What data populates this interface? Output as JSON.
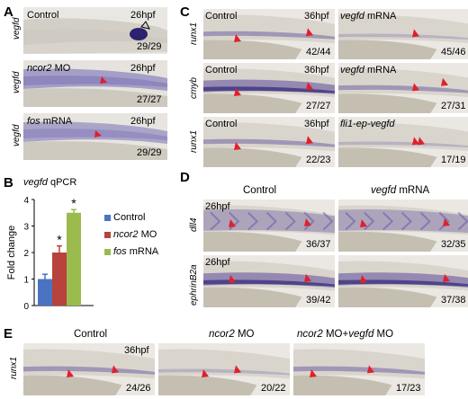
{
  "panel_labels": {
    "A": "A",
    "B": "B",
    "C": "C",
    "D": "D",
    "E": "E"
  },
  "panel_A": [
    {
      "gene": "vegfd",
      "condition": "Control",
      "condition_italic": "",
      "condition_suffix": "",
      "stage": "26hpf",
      "count": "29/29"
    },
    {
      "gene": "vegfd",
      "condition": "",
      "condition_italic": "ncor2",
      "condition_suffix": " MO",
      "stage": "26hpf",
      "count": "27/27"
    },
    {
      "gene": "vegfd",
      "condition": "",
      "condition_italic": "fos",
      "condition_suffix": " mRNA",
      "stage": "26hpf",
      "count": "29/29"
    }
  ],
  "panel_C": {
    "rows": [
      {
        "gene": "runx1",
        "left": {
          "label": "Control",
          "label_italic": "",
          "label_suffix": "",
          "stage": "36hpf",
          "count": "42/44"
        },
        "right": {
          "label": "",
          "label_italic": "vegfd",
          "label_suffix": " mRNA",
          "count": "45/46"
        }
      },
      {
        "gene": "cmyb",
        "left": {
          "label": "Control",
          "label_italic": "",
          "label_suffix": "",
          "stage": "36hpf",
          "count": "27/27"
        },
        "right": {
          "label": "",
          "label_italic": "vegfd",
          "label_suffix": " mRNA",
          "count": "27/31"
        }
      },
      {
        "gene": "runx1",
        "left": {
          "label": "Control",
          "label_italic": "",
          "label_suffix": "",
          "stage": "36hpf",
          "count": "22/23"
        },
        "right": {
          "label": "",
          "label_italic": "fli1-ep-vegfd",
          "label_suffix": "",
          "count": "17/19"
        }
      }
    ]
  },
  "panel_D": {
    "col_titles": {
      "left": "Control",
      "right_italic": "vegfd",
      "right_suffix": " mRNA"
    },
    "rows": [
      {
        "gene": "dll4",
        "stage": "26hpf",
        "left_count": "36/37",
        "right_count": "32/35"
      },
      {
        "gene": "ephrinB2a",
        "stage": "26hpf",
        "left_count": "39/42",
        "right_count": "37/38"
      }
    ]
  },
  "panel_E": {
    "gene": "runx1",
    "stage": "36hpf",
    "panels": [
      {
        "title": "Control",
        "title_italic": "",
        "title_suffix": "",
        "title_italic2": "",
        "title_suffix2": "",
        "count": "24/26"
      },
      {
        "title": "",
        "title_italic": "ncor2",
        "title_suffix": " MO",
        "title_italic2": "",
        "title_suffix2": "",
        "count": "20/22"
      },
      {
        "title": "",
        "title_italic": "ncor2",
        "title_suffix": " MO+",
        "title_italic2": "vegfd",
        "title_suffix2": " MO",
        "count": "17/23"
      }
    ]
  },
  "colors": {
    "stain": "#5c4a9c",
    "arrow": "#e0202a",
    "tissue": "#d9d6cf"
  },
  "chart_data": {
    "type": "bar",
    "title_italic": "vegfd",
    "title_suffix": " qPCR",
    "ylabel": "Fold change",
    "ylim": [
      0,
      4
    ],
    "yticks": [
      "0",
      "1",
      "2",
      "3",
      "4"
    ],
    "categories": [
      "Control",
      "ncor2 MO",
      "fos mRNA"
    ],
    "legend": [
      {
        "label": "Control",
        "italic": "",
        "suffix": "",
        "color": "#4a74c2"
      },
      {
        "label": "",
        "italic": "ncor2",
        "suffix": " MO",
        "color": "#b8423c"
      },
      {
        "label": "",
        "italic": "fos",
        "suffix": " mRNA",
        "color": "#9bbb4f"
      }
    ],
    "values": [
      1.0,
      2.0,
      3.5
    ],
    "errors": [
      0.18,
      0.25,
      0.12
    ],
    "significance": [
      "",
      "*",
      "*"
    ],
    "colors": [
      "#4a74c2",
      "#b8423c",
      "#9bbb4f"
    ]
  }
}
